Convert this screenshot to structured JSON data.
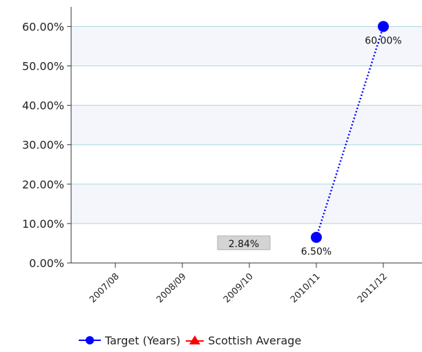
{
  "chart_data": {
    "type": "line",
    "categories": [
      "2007/08",
      "2008/09",
      "2009/10",
      "2010/11",
      "2011/12"
    ],
    "y_ticks": [
      "0.00%",
      "10.00%",
      "20.00%",
      "30.00%",
      "40.00%",
      "50.00%",
      "60.00%"
    ],
    "ylim": [
      0,
      0.65
    ],
    "grid": true,
    "series": [
      {
        "name": "Target (Years)",
        "color": "#0000ff",
        "marker": "circle",
        "line_style": "dotted",
        "values": [
          null,
          null,
          null,
          0.065,
          0.6
        ],
        "labels": [
          null,
          null,
          null,
          "6.50%",
          "60.00%"
        ]
      },
      {
        "name": "Scottish Average",
        "color": "#ff0000",
        "marker": "triangle",
        "values": [
          null,
          null,
          0.0284,
          null,
          null
        ],
        "labels": [
          null,
          null,
          "2.84%",
          null,
          null
        ]
      }
    ],
    "legend_position": "bottom"
  }
}
